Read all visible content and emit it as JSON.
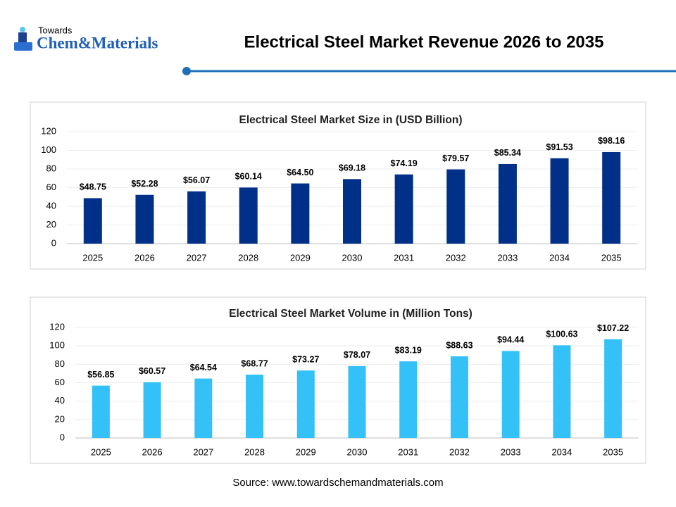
{
  "logo": {
    "top": "Towards",
    "name": "Chem&Materials"
  },
  "title": "Electrical Steel Market Revenue 2026 to 2035",
  "source": "Source: www.towardschemandmaterials.com",
  "chart_data": [
    {
      "type": "bar",
      "title": "Electrical Steel Market Size in (USD Billion)",
      "categories": [
        "2025",
        "2026",
        "2027",
        "2028",
        "2029",
        "2030",
        "2031",
        "2032",
        "2033",
        "2034",
        "2035"
      ],
      "values": [
        48.75,
        52.28,
        56.07,
        60.14,
        64.5,
        69.18,
        74.19,
        79.57,
        85.34,
        91.53,
        98.16
      ],
      "value_labels": [
        "$48.75",
        "$52.28",
        "$56.07",
        "$60.14",
        "$64.50",
        "$69.18",
        "$74.19",
        "$79.57",
        "$85.34",
        "$91.53",
        "$98.16"
      ],
      "color": "#003087",
      "ylim": [
        0,
        120
      ],
      "yticks": [
        0,
        20,
        40,
        60,
        80,
        100,
        120
      ],
      "grid": true
    },
    {
      "type": "bar",
      "title": "Electrical Steel Market Volume in (Million Tons)",
      "categories": [
        "2025",
        "2026",
        "2027",
        "2028",
        "2029",
        "2030",
        "2031",
        "2032",
        "2033",
        "2034",
        "2035"
      ],
      "values": [
        56.85,
        60.57,
        64.54,
        68.77,
        73.27,
        78.07,
        83.19,
        88.63,
        94.44,
        100.63,
        107.22
      ],
      "value_labels": [
        "$56.85",
        "$60.57",
        "$64.54",
        "$68.77",
        "$73.27",
        "$78.07",
        "$83.19",
        "$88.63",
        "$94.44",
        "$100.63",
        "$107.22"
      ],
      "color": "#33c1f7",
      "ylim": [
        0,
        120
      ],
      "yticks": [
        0,
        20,
        40,
        60,
        80,
        100,
        120
      ],
      "grid": true
    }
  ]
}
